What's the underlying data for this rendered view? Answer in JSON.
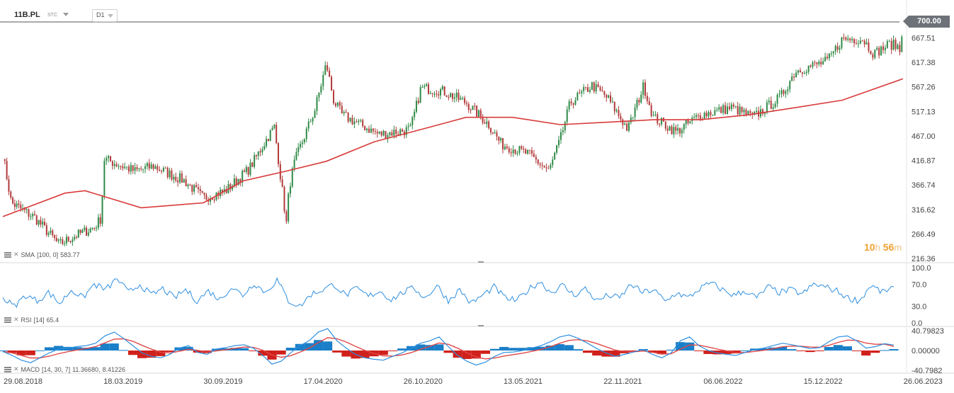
{
  "header": {
    "symbol": "11B.PL",
    "symbol_type": "STC",
    "timeframe": "D1"
  },
  "current_price": "700.00",
  "timer": {
    "hours": "10",
    "h_unit": "h",
    "minutes": "56",
    "m_unit": "m"
  },
  "indicators": {
    "sma": {
      "label": "SMA",
      "params": "[100,  0]",
      "value": "583.77"
    },
    "rsi": {
      "label": "RSI",
      "params": "[14]",
      "value": "65.4"
    },
    "macd": {
      "label": "MACD",
      "params": "[14,  30,  7]",
      "value1": "11.36680,",
      "value2": "8.41226"
    }
  },
  "chart_data": [
    {
      "type": "candlestick",
      "title": "11B.PL",
      "y_ticks": [
        "700.00",
        "667.51",
        "617.38",
        "567.26",
        "517.13",
        "467.00",
        "416.87",
        "366.74",
        "316.62",
        "266.49",
        "216.36"
      ],
      "ylim": [
        216.36,
        700.0
      ],
      "x_ticks": [
        "29.08.2018",
        "18.03.2019",
        "30.09.2019",
        "17.04.2020",
        "26.10.2020",
        "13.05.2021",
        "22.11.2021",
        "06.06.2022",
        "15.12.2022",
        "26.06.2023"
      ],
      "price_path": {
        "x": [
          "29.08.2018",
          "15.09.2018",
          "01.11.2018",
          "20.12.2018",
          "20.01.2019",
          "01.03.2019",
          "15.03.2019",
          "20.03.2019",
          "20.05.2019",
          "25.06.2019",
          "25.08.2019",
          "01.10.2019",
          "15.11.2019",
          "01.01.2020",
          "10.02.2020",
          "20.02.2020",
          "16.03.2020",
          "20.03.2020",
          "01.04.2020",
          "10.05.2020",
          "01.06.2020",
          "15.06.2020",
          "01.07.2020",
          "10.09.2020",
          "10.11.2020",
          "01.12.2020",
          "10.01.2021",
          "01.03.2021",
          "15.04.2021",
          "10.05.2021",
          "01.07.2021",
          "10.08.2021",
          "01.09.2021",
          "20.09.2021",
          "01.11.2021",
          "01.12.2021",
          "10.01.2022",
          "10.02.2022",
          "01.03.2022",
          "15.04.2022",
          "01.06.2022",
          "01.08.2022",
          "10.09.2022",
          "01.11.2022",
          "01.12.2022",
          "01.02.2023",
          "01.03.2023",
          "10.04.2023",
          "01.05.2023",
          "01.06.2023",
          "16.06.2023",
          "20.06.2023",
          "26.06.2023",
          "27.06.2023"
        ],
        "close": [
          430,
          330,
          300,
          245,
          262,
          280,
          300,
          420,
          395,
          405,
          375,
          340,
          355,
          400,
          470,
          485,
          280,
          360,
          415,
          520,
          615,
          540,
          510,
          470,
          480,
          565,
          560,
          535,
          490,
          450,
          430,
          395,
          460,
          535,
          570,
          545,
          480,
          570,
          505,
          475,
          510,
          525,
          505,
          545,
          600,
          620,
          665,
          665,
          635,
          655,
          650,
          640,
          700,
          660
        ]
      },
      "sma": {
        "name": "SMA [100, 0]",
        "value": 583.77,
        "color": "#d93a3a",
        "x": [
          "29.08.2018",
          "01.01.2019",
          "10.02.2019",
          "01.06.2019",
          "01.10.2019",
          "20.12.2019",
          "15.03.2020",
          "01.06.2020",
          "01.09.2020",
          "01.12.2020",
          "01.03.2021",
          "01.06.2021",
          "01.09.2021",
          "01.12.2021",
          "01.03.2022",
          "01.06.2022",
          "01.09.2022",
          "01.12.2022",
          "01.03.2023",
          "26.06.2023"
        ],
        "y": [
          302,
          350,
          355,
          320,
          330,
          375,
          395,
          415,
          455,
          480,
          505,
          505,
          490,
          495,
          500,
          500,
          510,
          525,
          540,
          583.77
        ]
      }
    },
    {
      "type": "line",
      "name": "RSI [14]",
      "y_ticks": [
        "100.0",
        "70.0",
        "30.0",
        "0.0"
      ],
      "ylim": [
        0,
        100
      ],
      "last": 65.4,
      "values": [
        45,
        30,
        50,
        40,
        55,
        35,
        60,
        45,
        70,
        60,
        80,
        55,
        70,
        50,
        62,
        45,
        60,
        40,
        58,
        42,
        65,
        50,
        72,
        55,
        78,
        40,
        30,
        52,
        60,
        70,
        50,
        62,
        48,
        58,
        42,
        55,
        63,
        45,
        68,
        40,
        60,
        35,
        50,
        65,
        45,
        40,
        60,
        75,
        55,
        68,
        50,
        62,
        40,
        50,
        45,
        70,
        55,
        60,
        38,
        55,
        45,
        62,
        72,
        60,
        50,
        58,
        45,
        65,
        55,
        60,
        52,
        70,
        65,
        58,
        45,
        40,
        68,
        55,
        65.4
      ],
      "color": "#2f8fe0"
    },
    {
      "type": "line",
      "name": "MACD [14, 30, 7]",
      "y_ticks": [
        "40.79823",
        "0.00000",
        "-40.7982"
      ],
      "ylim": [
        -40.7982,
        40.79823
      ],
      "macd_last": 11.3668,
      "signal_last": 8.41226,
      "macd": [
        -2,
        -10,
        -20,
        -25,
        -15,
        -5,
        3,
        5,
        8,
        10,
        15,
        30,
        38,
        25,
        10,
        -5,
        -12,
        -15,
        -8,
        5,
        10,
        -4,
        -8,
        3,
        6,
        10,
        12,
        5,
        -10,
        -28,
        -22,
        -5,
        10,
        20,
        38,
        45,
        20,
        5,
        -8,
        -15,
        -18,
        -20,
        -12,
        -5,
        5,
        15,
        20,
        28,
        8,
        -10,
        -22,
        -30,
        -24,
        -12,
        -4,
        -3,
        0,
        5,
        10,
        18,
        28,
        32,
        25,
        15,
        4,
        -5,
        -12,
        -8,
        -3,
        2,
        -8,
        -15,
        -5,
        20,
        28,
        10,
        0,
        -5,
        -8,
        -10,
        -4,
        2,
        5,
        10,
        15,
        12,
        8,
        4,
        6,
        18,
        28,
        30,
        20,
        5,
        8,
        14,
        11.3668
      ],
      "histogram_colors": {
        "positive": "#1a7fc8",
        "negative": "#d0201b"
      },
      "macd_color": "#2f8fe0",
      "signal_color": "#e04848"
    }
  ]
}
